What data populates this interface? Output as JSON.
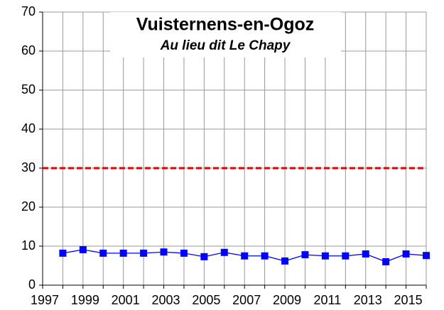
{
  "chart_data": {
    "type": "line",
    "title": "Vuisternens-en-Ogoz",
    "subtitle": "Au lieu dit Le Chapy",
    "x": [
      1998,
      1999,
      2000,
      2001,
      2002,
      2003,
      2004,
      2005,
      2006,
      2007,
      2008,
      2009,
      2010,
      2011,
      2012,
      2013,
      2014,
      2015,
      2016
    ],
    "series": [
      {
        "color": "#0000ff",
        "values": [
          8.2,
          9.1,
          8.2,
          8.2,
          8.2,
          8.5,
          8.2,
          7.3,
          8.4,
          7.5,
          7.5,
          6.2,
          7.8,
          7.5,
          7.5,
          8.0,
          6.0,
          8.0,
          7.6
        ]
      }
    ],
    "threshold": 30,
    "threshold_color": "#e00000",
    "xlim": [
      1997,
      2016
    ],
    "xticks": [
      1997,
      1999,
      2001,
      2003,
      2005,
      2007,
      2009,
      2011,
      2013,
      2015
    ],
    "xminorticks": [
      1998,
      2000,
      2002,
      2004,
      2006,
      2008,
      2010,
      2012,
      2014,
      2016
    ],
    "ylim": [
      0,
      70
    ],
    "yticks": [
      0,
      10,
      20,
      30,
      40,
      50,
      60,
      70
    ],
    "grid": true
  }
}
